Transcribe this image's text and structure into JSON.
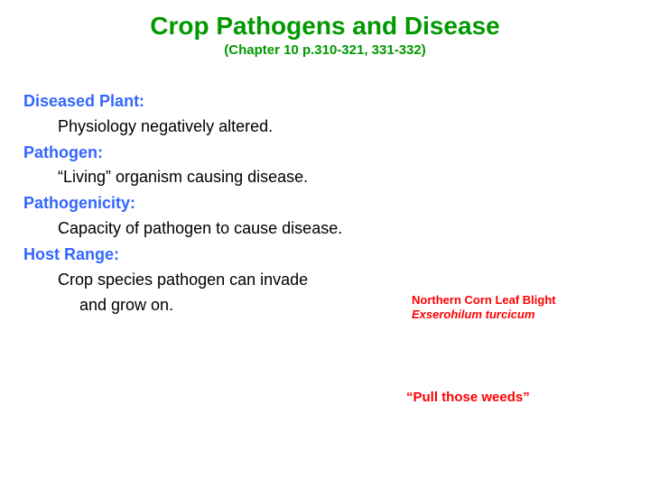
{
  "title": "Crop Pathogens and Disease",
  "subtitle": "(Chapter 10 p.310-321, 331-332)",
  "definitions": [
    {
      "term": "Diseased Plant:",
      "text": "Physiology negatively altered."
    },
    {
      "term": "Pathogen:",
      "text": "“Living” organism causing disease."
    },
    {
      "term": "Pathogenicity:",
      "text": "Capacity of pathogen to cause disease."
    },
    {
      "term": "Host Range:",
      "text": "Crop species pathogen can invade and grow on."
    }
  ],
  "disease": {
    "name": "Northern Corn Leaf Blight",
    "scientific": "Exserohilum turcicum"
  },
  "quote": "“Pull those weeds”",
  "colors": {
    "title": "#009900",
    "term": "#3366ff",
    "body": "#000000",
    "callout": "#ff0000",
    "background": "#ffffff"
  },
  "fonts": {
    "title_size": 28,
    "subtitle_size": 15,
    "body_size": 18,
    "callout_small": 13,
    "callout_med": 15,
    "family": "Arial"
  }
}
